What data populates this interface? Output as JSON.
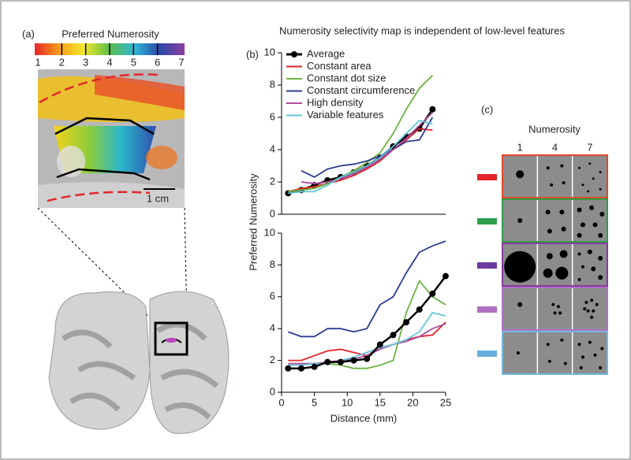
{
  "title": "Numerosity selectivity map is independent of low-level features",
  "panel_a": {
    "label": "(a)",
    "colorbar_title": "Preferred Numerosity",
    "colorbar_ticks": [
      1,
      2,
      3,
      4,
      5,
      6,
      7
    ],
    "scale_bar": "1 cm"
  },
  "chart_data": [
    {
      "type": "line",
      "panel_label": "(b)",
      "legend": "upper left",
      "x": [
        1,
        3,
        5,
        7,
        9,
        11,
        13,
        15,
        17,
        19,
        21,
        23
      ],
      "xlim": [
        0,
        25
      ],
      "ylim": [
        0,
        10
      ],
      "yticks": [
        0,
        2,
        4,
        6,
        8,
        10
      ],
      "series": [
        {
          "name": "Average",
          "color": "#000000",
          "marker": "circle",
          "values": [
            1.3,
            1.5,
            1.8,
            2.1,
            2.3,
            2.6,
            3.0,
            3.5,
            4.2,
            4.8,
            5.3,
            6.5
          ]
        },
        {
          "name": "Constant area",
          "color": "#e2262b",
          "values": [
            1.4,
            1.6,
            1.7,
            1.9,
            2.1,
            2.4,
            2.8,
            3.3,
            4.0,
            4.6,
            5.3,
            5.2
          ]
        },
        {
          "name": "Constant dot size",
          "color": "#6cb33f",
          "values": [
            1.4,
            1.5,
            1.6,
            1.9,
            2.3,
            2.7,
            3.2,
            3.8,
            5.0,
            6.5,
            7.8,
            8.6
          ]
        },
        {
          "name": "Constant circumference",
          "color": "#2c3d96",
          "values": [
            null,
            2.7,
            2.3,
            2.8,
            3.0,
            3.1,
            3.3,
            3.6,
            4.0,
            4.5,
            4.6,
            6.0
          ]
        },
        {
          "name": "High density",
          "color": "#b14ba1",
          "values": [
            null,
            2.0,
            1.9,
            2.0,
            2.2,
            2.5,
            2.9,
            3.4,
            4.0,
            4.7,
            5.5,
            6.3
          ]
        },
        {
          "name": "Variable features",
          "color": "#5fc8d9",
          "values": [
            1.3,
            1.4,
            1.4,
            1.8,
            2.3,
            2.6,
            3.0,
            3.5,
            4.2,
            5.0,
            5.8,
            5.6
          ]
        }
      ]
    },
    {
      "type": "line",
      "ylabel": "Preferred Numerosity",
      "xlabel": "Distance (mm)",
      "x": [
        1,
        3,
        5,
        7,
        9,
        11,
        13,
        15,
        17,
        19,
        21,
        23,
        25
      ],
      "xlim": [
        0,
        25
      ],
      "xticks": [
        0,
        5,
        10,
        15,
        20,
        25
      ],
      "ylim": [
        0,
        10
      ],
      "yticks": [
        0,
        2,
        4,
        6,
        8,
        10
      ],
      "series": [
        {
          "color": "#e2262b",
          "values": [
            2.0,
            2.0,
            2.3,
            2.6,
            2.7,
            2.5,
            2.3,
            2.8,
            3.0,
            3.3,
            3.5,
            3.6,
            4.4
          ]
        },
        {
          "color": "#6cb33f",
          "values": [
            1.8,
            1.8,
            1.8,
            1.8,
            1.7,
            1.5,
            1.5,
            1.7,
            2.0,
            5.0,
            7.0,
            6.0,
            5.5
          ]
        },
        {
          "color": "#2c3d96",
          "values": [
            3.8,
            3.5,
            3.5,
            4.0,
            4.0,
            3.8,
            4.0,
            5.5,
            6.0,
            7.5,
            8.8,
            9.2,
            9.5
          ]
        },
        {
          "color": "#b14ba1",
          "values": [
            1.8,
            1.8,
            1.8,
            1.9,
            2.0,
            2.1,
            2.3,
            2.7,
            3.0,
            3.2,
            3.5,
            4.0,
            4.3
          ]
        },
        {
          "color": "#5fc8d9",
          "values": [
            1.7,
            1.7,
            1.8,
            1.8,
            2.0,
            2.2,
            2.5,
            2.8,
            3.0,
            3.3,
            3.8,
            5.0,
            4.8
          ]
        },
        {
          "color": "#000000",
          "marker": "circle",
          "values": [
            1.5,
            1.5,
            1.6,
            1.9,
            1.9,
            2.0,
            2.1,
            3.0,
            3.6,
            4.4,
            5.2,
            6.2,
            7.3
          ]
        }
      ]
    }
  ],
  "panel_c": {
    "label": "(c)",
    "title": "Numerosity",
    "columns": [
      1,
      4,
      7
    ]
  }
}
